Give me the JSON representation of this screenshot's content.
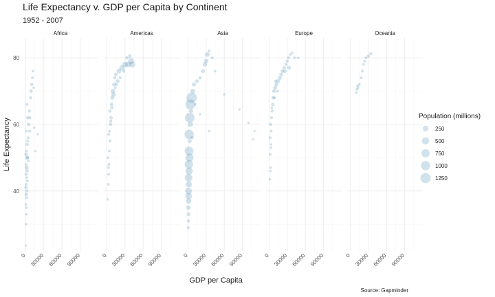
{
  "chart_data": {
    "type": "scatter",
    "title": "Life Expectancy v. GDP per Capita by Continent",
    "subtitle": "1952 - 2007",
    "xlabel": "GDP per Capita",
    "ylabel": "Life Expectancy",
    "caption": "Source: Gapminder",
    "xlim": [
      -5000,
      120000
    ],
    "ylim": [
      22,
      86
    ],
    "x_ticks": [
      0,
      30000,
      60000,
      90000
    ],
    "x_tick_labels": [
      "0",
      "30000",
      "60000",
      "90000"
    ],
    "y_ticks": [
      40,
      60,
      80
    ],
    "y_tick_labels": [
      "40",
      "60",
      "80"
    ],
    "grid": true,
    "point_color": "#4c8cb5",
    "legend": {
      "title": "Population (millions)",
      "position": "right",
      "entries": [
        {
          "label": "250",
          "value": 250
        },
        {
          "label": "500",
          "value": 500
        },
        {
          "label": "750",
          "value": 750
        },
        {
          "label": "1000",
          "value": 1000
        },
        {
          "label": "1250",
          "value": 1250
        }
      ]
    },
    "facets": [
      {
        "name": "Africa",
        "points": [
          [
            300,
            23.6,
            1
          ],
          [
            800,
            30,
            3
          ],
          [
            1200,
            33,
            5
          ],
          [
            500,
            36,
            4
          ],
          [
            1500,
            38,
            8
          ],
          [
            2000,
            40,
            10
          ],
          [
            900,
            42,
            6
          ],
          [
            1800,
            44,
            12
          ],
          [
            2500,
            46,
            15
          ],
          [
            1000,
            48,
            5
          ],
          [
            3000,
            50,
            20
          ],
          [
            1500,
            52,
            8
          ],
          [
            2200,
            54,
            30
          ],
          [
            4000,
            56,
            12
          ],
          [
            1200,
            58,
            6
          ],
          [
            5000,
            60,
            25
          ],
          [
            3500,
            62,
            40
          ],
          [
            6000,
            64,
            15
          ],
          [
            2000,
            66,
            10
          ],
          [
            8000,
            68,
            20
          ],
          [
            9000,
            70,
            30
          ],
          [
            10000,
            72,
            25
          ],
          [
            11000,
            74,
            8
          ],
          [
            12000,
            76,
            5
          ],
          [
            7000,
            62,
            10
          ],
          [
            14000,
            59,
            4
          ],
          [
            20000,
            57,
            2
          ],
          [
            16000,
            52,
            2
          ],
          [
            700,
            45,
            20
          ],
          [
            1600,
            47,
            80
          ],
          [
            2600,
            50,
            60
          ],
          [
            400,
            41,
            30
          ],
          [
            900,
            39,
            40
          ],
          [
            3200,
            55,
            12
          ],
          [
            6500,
            58,
            8
          ],
          [
            1100,
            35,
            6
          ],
          [
            2800,
            43,
            9
          ],
          [
            4500,
            49,
            7
          ],
          [
            600,
            51,
            50
          ],
          [
            13000,
            71,
            3
          ]
        ]
      },
      {
        "name": "Americas",
        "points": [
          [
            1500,
            37.5,
            3
          ],
          [
            2500,
            42,
            5
          ],
          [
            3000,
            45,
            8
          ],
          [
            3500,
            48,
            10
          ],
          [
            2000,
            50,
            6
          ],
          [
            4000,
            52,
            12
          ],
          [
            5000,
            55,
            20
          ],
          [
            3000,
            57,
            15
          ],
          [
            6000,
            60,
            30
          ],
          [
            7000,
            62,
            40
          ],
          [
            5000,
            64,
            25
          ],
          [
            8000,
            66,
            50
          ],
          [
            9000,
            68,
            80
          ],
          [
            10000,
            70,
            100
          ],
          [
            12000,
            72,
            60
          ],
          [
            13000,
            74,
            20
          ],
          [
            15000,
            75,
            40
          ],
          [
            20000,
            76,
            150
          ],
          [
            25000,
            77,
            200
          ],
          [
            30000,
            78,
            250
          ],
          [
            35000,
            78,
            280
          ],
          [
            40000,
            79,
            300
          ],
          [
            33000,
            80,
            30
          ],
          [
            38000,
            80.5,
            35
          ],
          [
            28000,
            76,
            20
          ],
          [
            22000,
            74,
            15
          ],
          [
            18000,
            73,
            60
          ],
          [
            11000,
            69,
            120
          ],
          [
            4500,
            58,
            10
          ],
          [
            6500,
            61,
            18
          ],
          [
            8500,
            65,
            22
          ],
          [
            2800,
            47,
            7
          ],
          [
            14000,
            71,
            9
          ],
          [
            16000,
            72,
            12
          ],
          [
            42000,
            78,
            310
          ]
        ]
      },
      {
        "name": "Asia",
        "points": [
          [
            500,
            29,
            10
          ],
          [
            800,
            31,
            20
          ],
          [
            1000,
            33,
            50
          ],
          [
            600,
            35,
            100
          ],
          [
            1200,
            37,
            200
          ],
          [
            900,
            40,
            400
          ],
          [
            1500,
            42,
            300
          ],
          [
            1000,
            44,
            600
          ],
          [
            2000,
            46,
            500
          ],
          [
            1500,
            48,
            800
          ],
          [
            2500,
            50,
            700
          ],
          [
            1800,
            52,
            900
          ],
          [
            3000,
            55,
            60
          ],
          [
            2000,
            57,
            1000
          ],
          [
            4000,
            60,
            200
          ],
          [
            3000,
            62,
            1100
          ],
          [
            5000,
            64,
            100
          ],
          [
            4000,
            66,
            1200
          ],
          [
            6000,
            68,
            1300
          ],
          [
            8000,
            70,
            150
          ],
          [
            10000,
            72,
            80
          ],
          [
            15000,
            73,
            40
          ],
          [
            20000,
            74,
            30
          ],
          [
            25000,
            76,
            60
          ],
          [
            28000,
            78,
            100
          ],
          [
            30000,
            79,
            120
          ],
          [
            32000,
            81,
            127
          ],
          [
            35000,
            82,
            10
          ],
          [
            40000,
            80,
            8
          ],
          [
            45000,
            76,
            5
          ],
          [
            60000,
            69,
            3
          ],
          [
            85000,
            64.5,
            2
          ],
          [
            100000,
            60.5,
            2
          ],
          [
            110000,
            58,
            1
          ],
          [
            108000,
            55.5,
            1
          ],
          [
            35000,
            58,
            3
          ],
          [
            20000,
            63,
            5
          ],
          [
            12000,
            66,
            9
          ],
          [
            6500,
            56,
            25
          ],
          [
            1200,
            38.5,
            400
          ]
        ]
      },
      {
        "name": "Europe",
        "points": [
          [
            1500,
            43.5,
            3
          ],
          [
            2500,
            47,
            5
          ],
          [
            2000,
            51,
            8
          ],
          [
            3000,
            53,
            4
          ],
          [
            1800,
            56,
            10
          ],
          [
            3500,
            58,
            6
          ],
          [
            2500,
            60,
            15
          ],
          [
            4000,
            62,
            12
          ],
          [
            5000,
            64,
            20
          ],
          [
            6000,
            66,
            30
          ],
          [
            7000,
            68,
            40
          ],
          [
            8000,
            70,
            50
          ],
          [
            10000,
            71,
            60
          ],
          [
            12000,
            72,
            70
          ],
          [
            15000,
            73,
            80
          ],
          [
            18000,
            74,
            60
          ],
          [
            20000,
            75,
            50
          ],
          [
            22000,
            76,
            40
          ],
          [
            25000,
            77,
            30
          ],
          [
            28000,
            78,
            20
          ],
          [
            30000,
            79,
            25
          ],
          [
            32000,
            80,
            15
          ],
          [
            35000,
            81,
            10
          ],
          [
            38000,
            81.5,
            8
          ],
          [
            42000,
            80,
            5
          ],
          [
            48000,
            80,
            4
          ],
          [
            33000,
            77,
            60
          ],
          [
            26000,
            76,
            55
          ],
          [
            14000,
            70,
            9
          ],
          [
            9000,
            68,
            7
          ],
          [
            4500,
            65,
            5
          ],
          [
            2200,
            46,
            2
          ],
          [
            3200,
            54,
            3
          ],
          [
            11000,
            73,
            20
          ]
        ]
      },
      {
        "name": "Oceania",
        "points": [
          [
            10000,
            69.5,
            8
          ],
          [
            11000,
            70.5,
            6
          ],
          [
            12000,
            71.5,
            10
          ],
          [
            13000,
            71,
            5
          ],
          [
            15000,
            72,
            12
          ],
          [
            18000,
            74,
            8
          ],
          [
            20000,
            76,
            14
          ],
          [
            22000,
            78,
            6
          ],
          [
            24000,
            79,
            16
          ],
          [
            26000,
            80,
            7
          ],
          [
            30000,
            80.5,
            18
          ],
          [
            34000,
            81.2,
            20
          ]
        ]
      }
    ]
  }
}
